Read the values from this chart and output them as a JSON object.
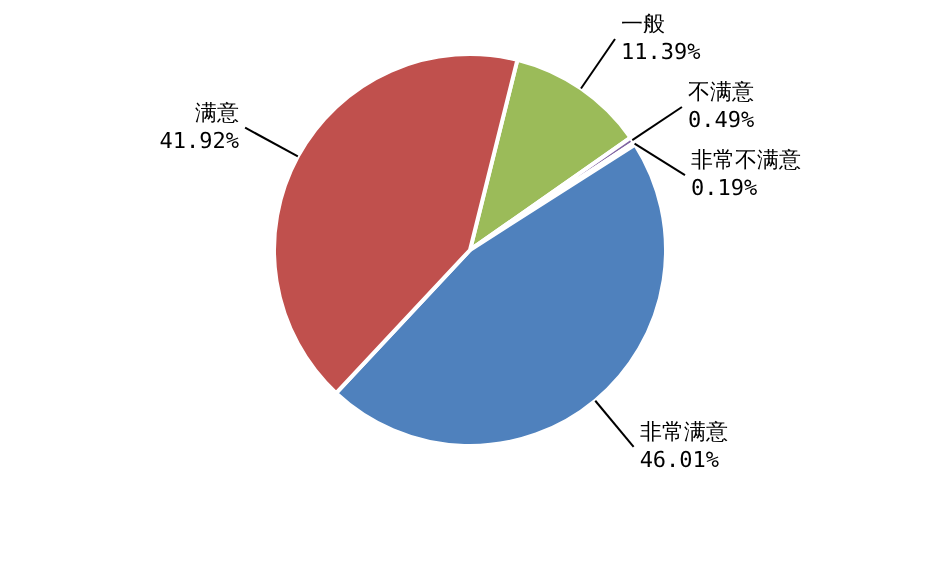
{
  "chart_data": {
    "type": "pie",
    "categories": [
      "一般",
      "不满意",
      "非常不满意",
      "非常满意",
      "满意"
    ],
    "values": [
      11.39,
      0.49,
      0.19,
      46.01,
      41.92
    ],
    "value_labels": [
      "11.39%",
      "0.49%",
      "0.19%",
      "46.01%",
      "41.92%"
    ],
    "colors": [
      "#9bbb59",
      "#8064a2",
      "#4bacc6",
      "#4f81bd",
      "#c0504d"
    ]
  }
}
